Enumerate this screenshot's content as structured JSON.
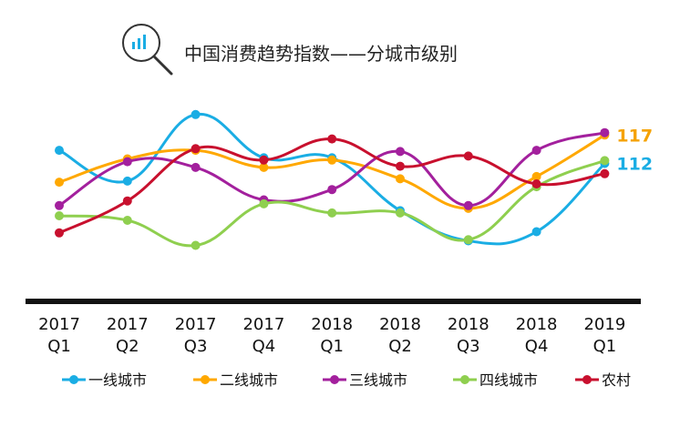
{
  "chart_data": {
    "type": "line",
    "title": "中国消费趋势指数——分城市级别",
    "categories": [
      "2017 Q1",
      "2017 Q2",
      "2017 Q3",
      "2017 Q4",
      "2018 Q1",
      "2018 Q2",
      "2018 Q3",
      "2018 Q4",
      "2019 Q1"
    ],
    "category_lines": [
      [
        "2017",
        "Q1"
      ],
      [
        "2017",
        "Q2"
      ],
      [
        "2017",
        "Q3"
      ],
      [
        "2017",
        "Q4"
      ],
      [
        "2018",
        "Q1"
      ],
      [
        "2018",
        "Q2"
      ],
      [
        "2018",
        "Q3"
      ],
      [
        "2018",
        "Q4"
      ],
      [
        "2019",
        "Q1"
      ]
    ],
    "ylim": [
      94,
      126
    ],
    "series": [
      {
        "name": "一线城市",
        "color": "#1AADE4",
        "values": [
          114.3,
          108.9,
          120.6,
          113.0,
          113.0,
          103.7,
          98.4,
          100.0,
          112.0
        ]
      },
      {
        "name": "二线城市",
        "color": "#FFA800",
        "values": [
          108.7,
          112.8,
          114.3,
          111.3,
          112.6,
          109.3,
          104.1,
          109.7,
          117.0
        ]
      },
      {
        "name": "三线城市",
        "color": "#A3209D",
        "values": [
          104.6,
          112.3,
          111.3,
          105.6,
          107.4,
          114.1,
          104.6,
          114.3,
          117.4
        ]
      },
      {
        "name": "四线城市",
        "color": "#8FCF4F",
        "values": [
          102.8,
          102.0,
          97.6,
          104.9,
          103.3,
          103.3,
          98.6,
          107.9,
          112.5
        ]
      },
      {
        "name": "农村",
        "color": "#C8102E",
        "values": [
          99.8,
          105.4,
          114.6,
          112.6,
          116.3,
          111.5,
          113.3,
          108.4,
          110.2
        ]
      }
    ],
    "end_labels": [
      {
        "series": "二线城市",
        "text": "117",
        "color": "#F5A200"
      },
      {
        "series": "一线城市",
        "text": "112",
        "color": "#1AADE4"
      }
    ],
    "legend_position": "bottom"
  }
}
